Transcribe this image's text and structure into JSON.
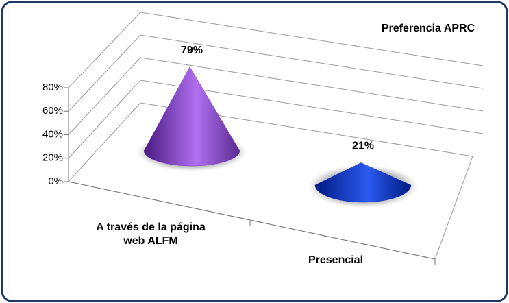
{
  "chart_data": {
    "type": "cone3d",
    "title": "Preferencia APRC",
    "categories": [
      "A través de la página web ALFM",
      "Presencial"
    ],
    "values": [
      79,
      21
    ],
    "value_labels": [
      "79%",
      "21%"
    ],
    "colors": [
      "#8a3fd0",
      "#1030c8"
    ],
    "ylim": [
      0,
      80
    ],
    "yticks": [
      {
        "value": 0,
        "label": "0%"
      },
      {
        "value": 20,
        "label": "20%"
      },
      {
        "value": 40,
        "label": "40%"
      },
      {
        "value": 60,
        "label": "60%"
      },
      {
        "value": 80,
        "label": "80%"
      }
    ],
    "grid": true
  }
}
